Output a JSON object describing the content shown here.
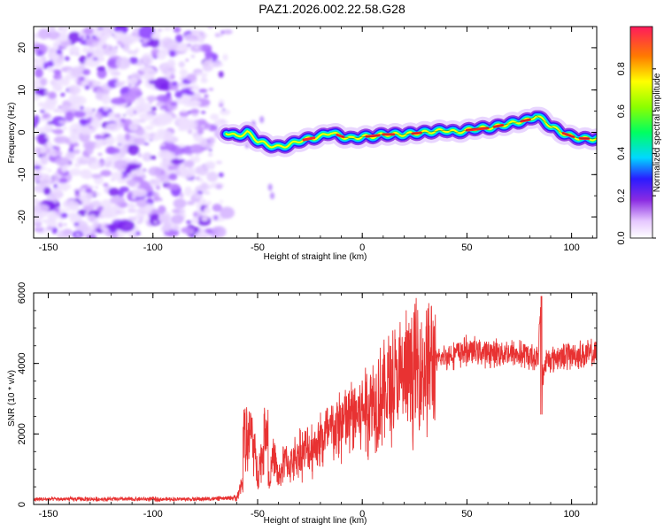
{
  "chart_data": [
    {
      "type": "heatmap",
      "title": "PAZ1.2026.002.22.58.G28",
      "xlabel": "Height of straight line (km)",
      "ylabel": "Frequency (Hz)",
      "xlim": [
        -157,
        112
      ],
      "ylim": [
        -25,
        25
      ],
      "xticks": [
        "-150",
        "-100",
        "-50",
        "0",
        "50",
        "100"
      ],
      "yticks": [
        "-20",
        "-10",
        "0",
        "10",
        "20"
      ],
      "ridge": {
        "x": [
          -65,
          -60,
          -55,
          -50,
          -45,
          -40,
          -35,
          -30,
          -25,
          -20,
          -15,
          -10,
          -5,
          0,
          5,
          10,
          20,
          30,
          40,
          45,
          50,
          55,
          60,
          65,
          70,
          75,
          80,
          83,
          86,
          90,
          95,
          100,
          105,
          112
        ],
        "freq": [
          0,
          -1,
          0,
          -2,
          -3,
          -3.5,
          -3,
          -2,
          -1.5,
          -1,
          0,
          -1,
          -1.5,
          -1,
          -1,
          -0.5,
          -0.5,
          0,
          0.5,
          0,
          0.5,
          1,
          1,
          1.5,
          2,
          2.5,
          3,
          4,
          3,
          1.5,
          0,
          -1,
          -1.5,
          -1.5
        ]
      },
      "colorbar": {
        "label": "Normalized spectral amplitude",
        "range": [
          0,
          1
        ],
        "ticks": [
          "0.0",
          "0.2",
          "0.4",
          "0.6",
          "0.8"
        ]
      }
    },
    {
      "type": "line",
      "title": "",
      "xlabel": "Height of straight line (km)",
      "ylabel": "SNR (10 * v/v)",
      "xlim": [
        -157,
        112
      ],
      "ylim": [
        0,
        6000
      ],
      "xticks": [
        "-150",
        "-100",
        "-50",
        "0",
        "50",
        "100"
      ],
      "yticks": [
        "0",
        "2000",
        "4000",
        "6000"
      ],
      "series": [
        {
          "name": "SNR",
          "color": "#e83232",
          "x": [
            -157,
            -130,
            -100,
            -80,
            -65,
            -60,
            -57,
            -55,
            -53,
            -50,
            -47,
            -45,
            -42,
            -40,
            -37,
            -35,
            -30,
            -25,
            -20,
            -15,
            -10,
            -5,
            0,
            5,
            10,
            15,
            20,
            25,
            30,
            35,
            40,
            45,
            50,
            55,
            60,
            65,
            70,
            75,
            80,
            84,
            85,
            86,
            88,
            90,
            95,
            100,
            105,
            112
          ],
          "values": [
            150,
            150,
            150,
            150,
            170,
            200,
            600,
            1800,
            2100,
            900,
            1600,
            600,
            1400,
            700,
            1300,
            1100,
            1450,
            1550,
            1800,
            2050,
            2250,
            2500,
            2700,
            2900,
            3150,
            3400,
            3600,
            3800,
            3950,
            4050,
            4200,
            4300,
            4350,
            4350,
            4300,
            4300,
            4300,
            4250,
            4200,
            4150,
            5500,
            3600,
            4100,
            4150,
            4200,
            4250,
            4250,
            4250
          ]
        }
      ],
      "annotations": [
        {
          "x": -46,
          "y": 2800
        },
        {
          "x": 85.5,
          "y": 6000
        },
        {
          "x": 85.5,
          "y": 2500
        }
      ]
    }
  ]
}
